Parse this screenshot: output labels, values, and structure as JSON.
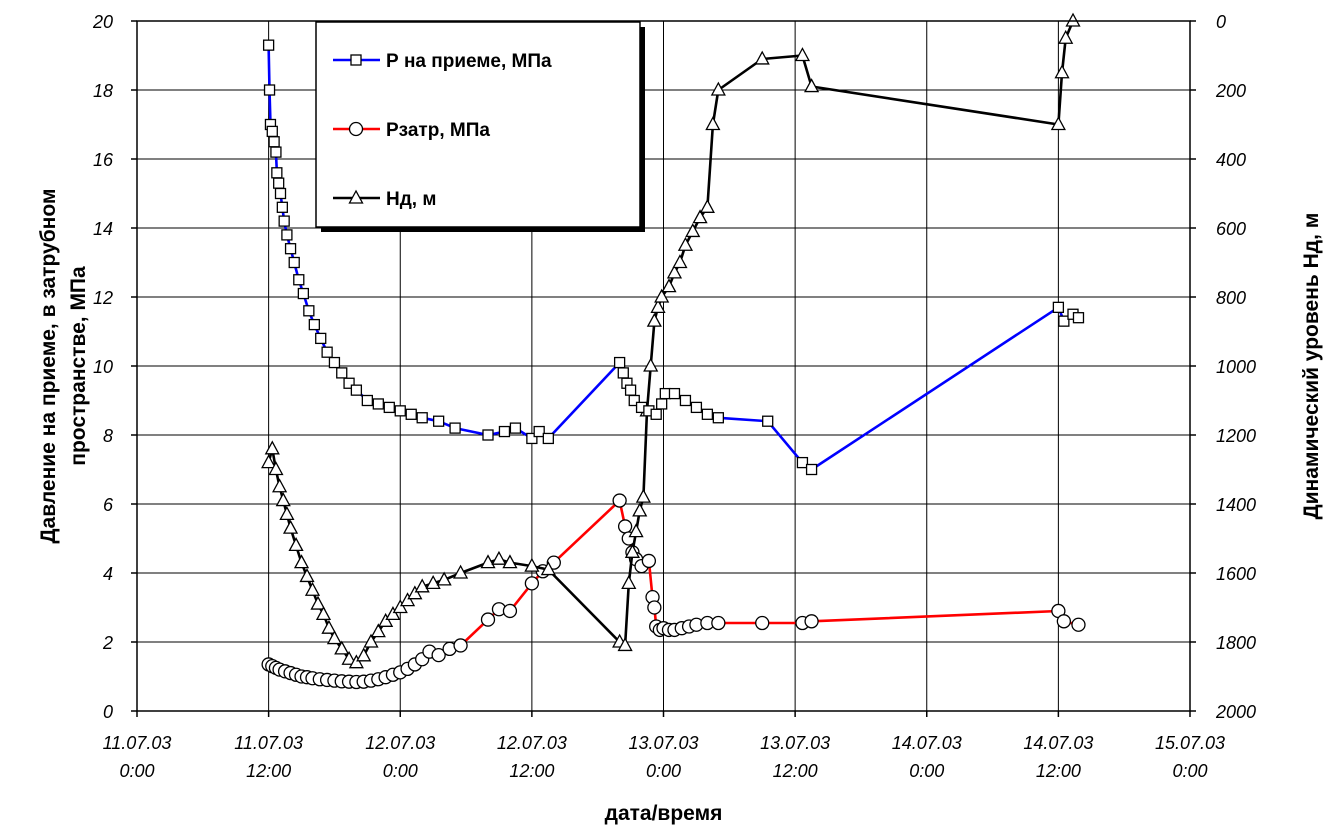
{
  "chart_data": {
    "type": "line",
    "xlabel": "дата/время",
    "ylabel_left": [
      "Давление на приеме, в затрубном",
      "пространстве, МПа"
    ],
    "ylabel_right": "Динамический уровень Нд, м",
    "x_unit": "datetime",
    "xlim": [
      "2003-07-11T00:00",
      "2003-07-15T00:00"
    ],
    "ylim_left": [
      0,
      20
    ],
    "ylim_right": [
      2000,
      0
    ],
    "right_axis_inverted": true,
    "grid": true,
    "legend_position": "top-left-center",
    "x_ticks": [
      {
        "line1": "11.07.03",
        "line2": "0:00"
      },
      {
        "line1": "11.07.03",
        "line2": "12:00"
      },
      {
        "line1": "12.07.03",
        "line2": "0:00"
      },
      {
        "line1": "12.07.03",
        "line2": "12:00"
      },
      {
        "line1": "13.07.03",
        "line2": "0:00"
      },
      {
        "line1": "13.07.03",
        "line2": "12:00"
      },
      {
        "line1": "14.07.03",
        "line2": "0:00"
      },
      {
        "line1": "14.07.03",
        "line2": "12:00"
      },
      {
        "line1": "15.07.03",
        "line2": "0:00"
      }
    ],
    "y_ticks_left": [
      "0",
      "2",
      "4",
      "6",
      "8",
      "10",
      "12",
      "14",
      "16",
      "18",
      "20"
    ],
    "y_ticks_right": [
      "0",
      "200",
      "400",
      "600",
      "800",
      "1000",
      "1200",
      "1400",
      "1600",
      "1800",
      "2000"
    ],
    "series": [
      {
        "name": "Р на приеме, МПа",
        "axis": "left",
        "color": "#0000ff",
        "marker": "square",
        "points": [
          [
            "2003-07-11T12:00",
            19.3
          ],
          [
            "2003-07-11T12:05",
            18.0
          ],
          [
            "2003-07-11T12:10",
            17.0
          ],
          [
            "2003-07-11T12:20",
            16.8
          ],
          [
            "2003-07-11T12:30",
            16.5
          ],
          [
            "2003-07-11T12:40",
            16.2
          ],
          [
            "2003-07-11T12:45",
            15.6
          ],
          [
            "2003-07-11T12:55",
            15.3
          ],
          [
            "2003-07-11T13:05",
            15.0
          ],
          [
            "2003-07-11T13:15",
            14.6
          ],
          [
            "2003-07-11T13:25",
            14.2
          ],
          [
            "2003-07-11T13:40",
            13.8
          ],
          [
            "2003-07-11T14:00",
            13.4
          ],
          [
            "2003-07-11T14:20",
            13.0
          ],
          [
            "2003-07-11T14:45",
            12.5
          ],
          [
            "2003-07-11T15:10",
            12.1
          ],
          [
            "2003-07-11T15:40",
            11.6
          ],
          [
            "2003-07-11T16:10",
            11.2
          ],
          [
            "2003-07-11T16:45",
            10.8
          ],
          [
            "2003-07-11T17:20",
            10.4
          ],
          [
            "2003-07-11T18:00",
            10.1
          ],
          [
            "2003-07-11T18:40",
            9.8
          ],
          [
            "2003-07-11T19:20",
            9.5
          ],
          [
            "2003-07-11T20:00",
            9.3
          ],
          [
            "2003-07-11T21:00",
            9.0
          ],
          [
            "2003-07-11T22:00",
            8.9
          ],
          [
            "2003-07-11T23:00",
            8.8
          ],
          [
            "2003-07-12T00:00",
            8.7
          ],
          [
            "2003-07-12T01:00",
            8.6
          ],
          [
            "2003-07-12T02:00",
            8.5
          ],
          [
            "2003-07-12T03:30",
            8.4
          ],
          [
            "2003-07-12T05:00",
            8.2
          ],
          [
            "2003-07-12T08:00",
            8.0
          ],
          [
            "2003-07-12T09:30",
            8.1
          ],
          [
            "2003-07-12T10:30",
            8.2
          ],
          [
            "2003-07-12T12:00",
            7.9
          ],
          [
            "2003-07-12T12:40",
            8.1
          ],
          [
            "2003-07-12T13:30",
            7.9
          ],
          [
            "2003-07-12T20:00",
            10.1
          ],
          [
            "2003-07-12T20:20",
            9.8
          ],
          [
            "2003-07-12T20:40",
            9.5
          ],
          [
            "2003-07-12T21:00",
            9.3
          ],
          [
            "2003-07-12T21:20",
            9.0
          ],
          [
            "2003-07-12T22:00",
            8.8
          ],
          [
            "2003-07-12T22:40",
            8.7
          ],
          [
            "2003-07-12T23:20",
            8.6
          ],
          [
            "2003-07-12T23:50",
            8.9
          ],
          [
            "2003-07-13T00:10",
            9.2
          ],
          [
            "2003-07-13T01:00",
            9.2
          ],
          [
            "2003-07-13T02:00",
            9.0
          ],
          [
            "2003-07-13T03:00",
            8.8
          ],
          [
            "2003-07-13T04:00",
            8.6
          ],
          [
            "2003-07-13T05:00",
            8.5
          ],
          [
            "2003-07-13T09:30",
            8.4
          ],
          [
            "2003-07-13T12:40",
            7.2
          ],
          [
            "2003-07-13T13:30",
            7.0
          ],
          [
            "2003-07-14T12:00",
            11.7
          ],
          [
            "2003-07-14T12:30",
            11.3
          ],
          [
            "2003-07-14T13:20",
            11.5
          ],
          [
            "2003-07-14T13:50",
            11.4
          ]
        ]
      },
      {
        "name": "Рзатр, МПа",
        "axis": "left",
        "color": "#ff0000",
        "marker": "circle",
        "points": [
          [
            "2003-07-11T12:00",
            1.35
          ],
          [
            "2003-07-11T12:20",
            1.3
          ],
          [
            "2003-07-11T12:40",
            1.25
          ],
          [
            "2003-07-11T13:00",
            1.2
          ],
          [
            "2003-07-11T13:30",
            1.15
          ],
          [
            "2003-07-11T14:00",
            1.1
          ],
          [
            "2003-07-11T14:30",
            1.05
          ],
          [
            "2003-07-11T15:00",
            1.0
          ],
          [
            "2003-07-11T15:30",
            0.98
          ],
          [
            "2003-07-11T16:00",
            0.95
          ],
          [
            "2003-07-11T16:40",
            0.92
          ],
          [
            "2003-07-11T17:20",
            0.9
          ],
          [
            "2003-07-11T18:00",
            0.88
          ],
          [
            "2003-07-11T18:40",
            0.86
          ],
          [
            "2003-07-11T19:20",
            0.85
          ],
          [
            "2003-07-11T20:00",
            0.84
          ],
          [
            "2003-07-11T20:40",
            0.85
          ],
          [
            "2003-07-11T21:20",
            0.88
          ],
          [
            "2003-07-11T22:00",
            0.92
          ],
          [
            "2003-07-11T22:40",
            0.98
          ],
          [
            "2003-07-11T23:20",
            1.05
          ],
          [
            "2003-07-12T00:00",
            1.12
          ],
          [
            "2003-07-12T00:40",
            1.22
          ],
          [
            "2003-07-12T01:20",
            1.35
          ],
          [
            "2003-07-12T02:00",
            1.5
          ],
          [
            "2003-07-12T02:40",
            1.72
          ],
          [
            "2003-07-12T03:30",
            1.62
          ],
          [
            "2003-07-12T04:30",
            1.8
          ],
          [
            "2003-07-12T05:30",
            1.9
          ],
          [
            "2003-07-12T08:00",
            2.65
          ],
          [
            "2003-07-12T09:00",
            2.95
          ],
          [
            "2003-07-12T10:00",
            2.9
          ],
          [
            "2003-07-12T12:00",
            3.7
          ],
          [
            "2003-07-12T13:00",
            4.05
          ],
          [
            "2003-07-12T14:00",
            4.3
          ],
          [
            "2003-07-12T20:00",
            6.1
          ],
          [
            "2003-07-12T20:30",
            5.35
          ],
          [
            "2003-07-12T20:50",
            5.0
          ],
          [
            "2003-07-12T21:10",
            4.6
          ],
          [
            "2003-07-12T21:30",
            4.4
          ],
          [
            "2003-07-12T22:00",
            4.2
          ],
          [
            "2003-07-12T22:40",
            4.35
          ],
          [
            "2003-07-12T23:00",
            3.3
          ],
          [
            "2003-07-12T23:10",
            3.0
          ],
          [
            "2003-07-12T23:20",
            2.45
          ],
          [
            "2003-07-12T23:40",
            2.35
          ],
          [
            "2003-07-13T00:00",
            2.4
          ],
          [
            "2003-07-13T00:30",
            2.35
          ],
          [
            "2003-07-13T01:00",
            2.35
          ],
          [
            "2003-07-13T01:40",
            2.4
          ],
          [
            "2003-07-13T02:20",
            2.45
          ],
          [
            "2003-07-13T03:00",
            2.5
          ],
          [
            "2003-07-13T04:00",
            2.55
          ],
          [
            "2003-07-13T05:00",
            2.55
          ],
          [
            "2003-07-13T09:00",
            2.55
          ],
          [
            "2003-07-13T12:40",
            2.55
          ],
          [
            "2003-07-13T13:30",
            2.6
          ],
          [
            "2003-07-14T12:00",
            2.9
          ],
          [
            "2003-07-14T12:30",
            2.6
          ],
          [
            "2003-07-14T13:50",
            2.5
          ]
        ]
      },
      {
        "name": "Нд, м",
        "axis": "right",
        "color": "#000000",
        "marker": "triangle",
        "points": [
          [
            "2003-07-11T12:00",
            1280
          ],
          [
            "2003-07-11T12:20",
            1240
          ],
          [
            "2003-07-11T12:40",
            1300
          ],
          [
            "2003-07-11T13:00",
            1350
          ],
          [
            "2003-07-11T13:20",
            1390
          ],
          [
            "2003-07-11T13:40",
            1430
          ],
          [
            "2003-07-11T14:00",
            1470
          ],
          [
            "2003-07-11T14:30",
            1520
          ],
          [
            "2003-07-11T15:00",
            1570
          ],
          [
            "2003-07-11T15:30",
            1610
          ],
          [
            "2003-07-11T16:00",
            1650
          ],
          [
            "2003-07-11T16:30",
            1690
          ],
          [
            "2003-07-11T17:00",
            1720
          ],
          [
            "2003-07-11T17:30",
            1760
          ],
          [
            "2003-07-11T18:00",
            1790
          ],
          [
            "2003-07-11T18:40",
            1820
          ],
          [
            "2003-07-11T19:20",
            1850
          ],
          [
            "2003-07-11T20:00",
            1860
          ],
          [
            "2003-07-11T20:40",
            1840
          ],
          [
            "2003-07-11T21:20",
            1800
          ],
          [
            "2003-07-11T22:00",
            1770
          ],
          [
            "2003-07-11T22:40",
            1740
          ],
          [
            "2003-07-11T23:20",
            1720
          ],
          [
            "2003-07-12T00:00",
            1700
          ],
          [
            "2003-07-12T00:40",
            1680
          ],
          [
            "2003-07-12T01:20",
            1660
          ],
          [
            "2003-07-12T02:00",
            1640
          ],
          [
            "2003-07-12T03:00",
            1630
          ],
          [
            "2003-07-12T04:00",
            1620
          ],
          [
            "2003-07-12T05:30",
            1600
          ],
          [
            "2003-07-12T08:00",
            1570
          ],
          [
            "2003-07-12T09:00",
            1560
          ],
          [
            "2003-07-12T10:00",
            1570
          ],
          [
            "2003-07-12T12:00",
            1580
          ],
          [
            "2003-07-12T13:30",
            1590
          ],
          [
            "2003-07-12T20:00",
            1800
          ],
          [
            "2003-07-12T20:30",
            1810
          ],
          [
            "2003-07-12T20:50",
            1630
          ],
          [
            "2003-07-12T21:10",
            1540
          ],
          [
            "2003-07-12T21:30",
            1480
          ],
          [
            "2003-07-12T21:50",
            1420
          ],
          [
            "2003-07-12T22:10",
            1380
          ],
          [
            "2003-07-12T22:30",
            1130
          ],
          [
            "2003-07-12T22:50",
            1000
          ],
          [
            "2003-07-12T23:10",
            870
          ],
          [
            "2003-07-12T23:30",
            830
          ],
          [
            "2003-07-12T23:50",
            800
          ],
          [
            "2003-07-13T00:30",
            770
          ],
          [
            "2003-07-13T01:00",
            730
          ],
          [
            "2003-07-13T01:30",
            700
          ],
          [
            "2003-07-13T02:00",
            650
          ],
          [
            "2003-07-13T02:40",
            610
          ],
          [
            "2003-07-13T03:20",
            570
          ],
          [
            "2003-07-13T04:00",
            540
          ],
          [
            "2003-07-13T04:30",
            300
          ],
          [
            "2003-07-13T05:00",
            200
          ],
          [
            "2003-07-13T09:00",
            110
          ],
          [
            "2003-07-13T12:40",
            100
          ],
          [
            "2003-07-13T13:30",
            190
          ],
          [
            "2003-07-14T12:00",
            300
          ],
          [
            "2003-07-14T12:20",
            150
          ],
          [
            "2003-07-14T12:40",
            50
          ],
          [
            "2003-07-14T13:20",
            0
          ]
        ]
      }
    ]
  }
}
